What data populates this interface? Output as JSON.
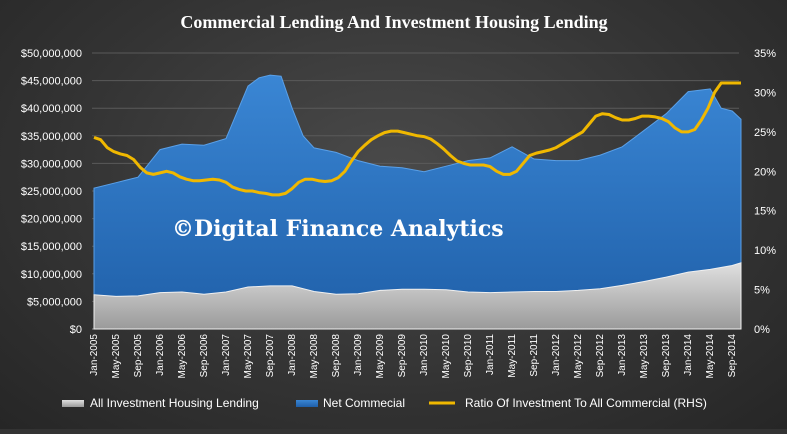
{
  "chart_data": {
    "type": "area",
    "title": "Commercial Lending And Investment Housing Lending",
    "watermark": "©Digital Finance Analytics",
    "categories": [
      "Jan-2005",
      "May-2005",
      "Sep-2005",
      "Jan-2006",
      "May-2006",
      "Sep-2006",
      "Jan-2007",
      "May-2007",
      "Sep-2007",
      "Jan-2008",
      "May-2008",
      "Sep-2008",
      "Jan-2009",
      "May-2009",
      "Sep-2009",
      "Jan-2010",
      "May-2010",
      "Sep-2010",
      "Jan-2011",
      "May-2011",
      "Sep-2011",
      "Jan-2012",
      "May-2012",
      "Sep-2012",
      "Jan-2013",
      "May-2013",
      "Sep-2013",
      "Jan-2014",
      "May-2014",
      "Sep-2014"
    ],
    "left_axis": {
      "min": 0,
      "max": 50000000,
      "ticks": [
        "$0",
        "$5,000,000",
        "$10,000,000",
        "$15,000,000",
        "$20,000,000",
        "$25,000,000",
        "$30,000,000",
        "$35,000,000",
        "$40,000,000",
        "$45,000,000",
        "$50,000,000"
      ]
    },
    "right_axis": {
      "min": 0,
      "max": 35,
      "ticks": [
        "0%",
        "5%",
        "10%",
        "15%",
        "20%",
        "25%",
        "30%",
        "35%"
      ]
    },
    "series": [
      {
        "name": "All Investment Housing Lending",
        "axis": "left",
        "color": "#c8c8c8",
        "x": [
          0,
          1,
          2,
          3,
          4,
          5,
          6,
          7,
          8,
          9,
          10,
          11,
          12,
          13,
          14,
          15,
          16,
          17,
          18,
          19,
          20,
          21,
          22,
          23,
          24,
          25,
          26,
          27,
          28,
          29,
          29.4
        ],
        "values": [
          6200000,
          5900000,
          6000000,
          6600000,
          6700000,
          6300000,
          6700000,
          7600000,
          7800000,
          7800000,
          6800000,
          6300000,
          6400000,
          7000000,
          7200000,
          7200000,
          7100000,
          6700000,
          6600000,
          6700000,
          6800000,
          6800000,
          7000000,
          7300000,
          7900000,
          8600000,
          9400000,
          10300000,
          10800000,
          11500000,
          12000000
        ]
      },
      {
        "name": "Net Commecial",
        "axis": "left",
        "color": "#2f78c8",
        "x": [
          0,
          1,
          2,
          3,
          4,
          5,
          6,
          7,
          7.5,
          8,
          8.5,
          9,
          9.5,
          10,
          11,
          12,
          13,
          14,
          15,
          16,
          17,
          18,
          19,
          20,
          21,
          22,
          23,
          24,
          25,
          26,
          27,
          28,
          28.5,
          29,
          29.4
        ],
        "values": [
          25500000,
          26500000,
          27500000,
          32500000,
          33500000,
          33300000,
          34500000,
          44000000,
          45500000,
          46000000,
          45800000,
          40000000,
          35000000,
          32800000,
          32000000,
          30500000,
          29500000,
          29200000,
          28500000,
          29500000,
          30500000,
          31000000,
          33000000,
          30800000,
          30500000,
          30500000,
          31500000,
          33000000,
          36000000,
          39000000,
          43000000,
          43500000,
          40000000,
          39500000,
          38000000
        ]
      },
      {
        "name": "Ratio Of Investment To All Commercial (RHS)",
        "axis": "right",
        "color": "#f0b800",
        "x": [
          0,
          0.3,
          0.6,
          0.9,
          1.2,
          1.5,
          1.8,
          2.1,
          2.4,
          2.7,
          3,
          3.3,
          3.6,
          3.9,
          4.2,
          4.5,
          4.8,
          5.1,
          5.4,
          5.7,
          6,
          6.3,
          6.6,
          6.9,
          7.2,
          7.5,
          7.8,
          8.1,
          8.4,
          8.7,
          9,
          9.3,
          9.6,
          9.9,
          10.2,
          10.5,
          10.8,
          11.1,
          11.4,
          11.7,
          12,
          12.3,
          12.6,
          12.9,
          13.2,
          13.5,
          13.8,
          14.1,
          14.4,
          14.7,
          15,
          15.3,
          15.6,
          15.9,
          16.2,
          16.5,
          16.8,
          17.1,
          17.4,
          17.7,
          18,
          18.3,
          18.6,
          18.9,
          19.2,
          19.5,
          19.8,
          20.1,
          20.4,
          20.7,
          21,
          21.3,
          21.6,
          21.9,
          22.2,
          22.5,
          22.8,
          23.1,
          23.4,
          23.7,
          24,
          24.3,
          24.6,
          24.9,
          25.2,
          25.5,
          25.8,
          26.1,
          26.4,
          26.7,
          27,
          27.3,
          27.6,
          27.9,
          28.2,
          28.5,
          28.8,
          29.1,
          29.4
        ],
        "values": [
          24.3,
          24,
          23,
          22.5,
          22.2,
          22,
          21.5,
          20.5,
          19.8,
          19.6,
          19.8,
          20,
          19.8,
          19.3,
          19,
          18.8,
          18.8,
          18.9,
          19,
          18.9,
          18.6,
          18,
          17.7,
          17.5,
          17.5,
          17.3,
          17.2,
          17,
          17,
          17.2,
          17.8,
          18.6,
          19,
          19,
          18.8,
          18.7,
          18.8,
          19.2,
          20,
          21.3,
          22.5,
          23.3,
          24,
          24.5,
          24.9,
          25.1,
          25.1,
          24.9,
          24.7,
          24.5,
          24.4,
          24.1,
          23.5,
          22.8,
          22,
          21.3,
          21,
          20.8,
          20.8,
          20.8,
          20.6,
          20,
          19.6,
          19.6,
          20,
          21,
          22,
          22.3,
          22.5,
          22.7,
          23,
          23.5,
          24,
          24.5,
          25,
          26,
          27,
          27.3,
          27.2,
          26.8,
          26.5,
          26.5,
          26.7,
          27,
          27,
          26.9,
          26.7,
          26.3,
          25.5,
          25,
          25,
          25.3,
          26.5,
          28,
          30,
          31.2,
          31.2,
          31.2,
          31.2
        ]
      }
    ],
    "legend": {
      "placement": "bottom"
    }
  }
}
